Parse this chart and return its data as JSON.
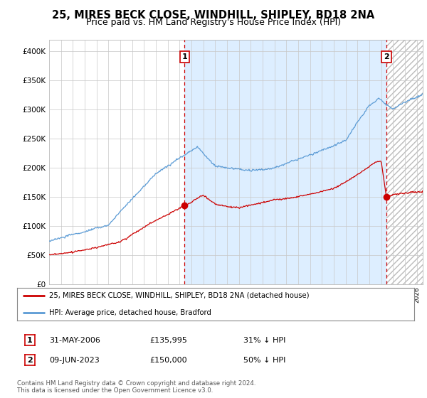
{
  "title": "25, MIRES BECK CLOSE, WINDHILL, SHIPLEY, BD18 2NA",
  "subtitle": "Price paid vs. HM Land Registry's House Price Index (HPI)",
  "title_fontsize": 10.5,
  "subtitle_fontsize": 9,
  "line1_color": "#cc0000",
  "line2_color": "#5b9bd5",
  "background_color": "#ffffff",
  "grid_color": "#c8c8c8",
  "fill_color": "#ddeeff",
  "ylim": [
    0,
    420000
  ],
  "yticks": [
    0,
    50000,
    100000,
    150000,
    200000,
    250000,
    300000,
    350000,
    400000
  ],
  "ytick_labels": [
    "£0",
    "£50K",
    "£100K",
    "£150K",
    "£200K",
    "£250K",
    "£300K",
    "£350K",
    "£400K"
  ],
  "xlim_start": 1995,
  "xlim_end": 2026.5,
  "sale1_x": 2006.42,
  "sale1_y": 135995,
  "sale1_label": "1",
  "sale2_x": 2023.44,
  "sale2_y": 150000,
  "sale2_label": "2",
  "legend_line1": "25, MIRES BECK CLOSE, WINDHILL, SHIPLEY, BD18 2NA (detached house)",
  "legend_line2": "HPI: Average price, detached house, Bradford",
  "annotation1_date": "31-MAY-2006",
  "annotation1_price": "£135,995",
  "annotation1_hpi": "31% ↓ HPI",
  "annotation2_date": "09-JUN-2023",
  "annotation2_price": "£150,000",
  "annotation2_hpi": "50% ↓ HPI",
  "footer": "Contains HM Land Registry data © Crown copyright and database right 2024.\nThis data is licensed under the Open Government Licence v3.0."
}
